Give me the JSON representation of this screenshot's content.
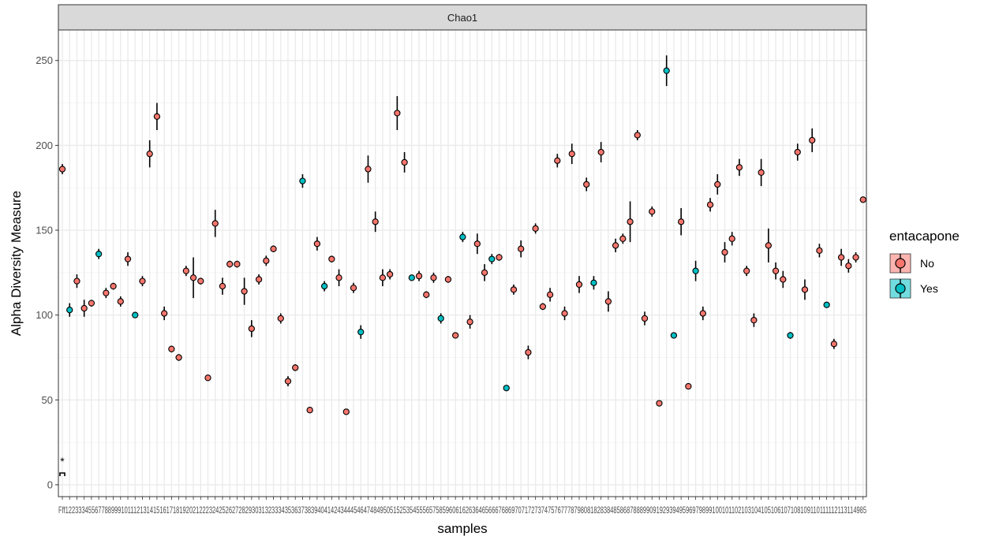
{
  "chart_data": {
    "type": "scatter",
    "facet_strip": "Chao1",
    "xlabel": "samples",
    "ylabel": "Alpha Diversity Measure",
    "ylim": [
      -7,
      268
    ],
    "yticks": [
      0,
      50,
      100,
      150,
      200,
      250
    ],
    "grid": true,
    "legend": {
      "title": "entacapone",
      "placement": "right",
      "entries": [
        {
          "label": "No",
          "color": "#F8766D"
        },
        {
          "label": "Yes",
          "color": "#00BFC4"
        }
      ]
    },
    "x_tick_text": "Fff12233345567788999101112131415161718192021222324252627282930313233343536373839404142434445464748495051525354555657585960616263646566676869707172737475767778798081828384858687888990919293949596979899100101102103104105106107108109110111112113114985",
    "annotation": "*",
    "points": [
      {
        "group": "No",
        "y": 186,
        "err": 3
      },
      {
        "group": "Yes",
        "y": 103,
        "err": 4
      },
      {
        "group": "No",
        "y": 120,
        "err": 4
      },
      {
        "group": "No",
        "y": 104,
        "err": 5
      },
      {
        "group": "No",
        "y": 107,
        "err": 2
      },
      {
        "group": "Yes",
        "y": 136,
        "err": 3
      },
      {
        "group": "No",
        "y": 113,
        "err": 3
      },
      {
        "group": "No",
        "y": 117,
        "err": 2
      },
      {
        "group": "No",
        "y": 108,
        "err": 3
      },
      {
        "group": "No",
        "y": 133,
        "err": 4
      },
      {
        "group": "Yes",
        "y": 100,
        "err": 1
      },
      {
        "group": "No",
        "y": 120,
        "err": 3
      },
      {
        "group": "No",
        "y": 195,
        "err": 8
      },
      {
        "group": "No",
        "y": 217,
        "err": 8
      },
      {
        "group": "No",
        "y": 101,
        "err": 4
      },
      {
        "group": "No",
        "y": 80,
        "err": 2
      },
      {
        "group": "No",
        "y": 75,
        "err": 2
      },
      {
        "group": "No",
        "y": 126,
        "err": 3
      },
      {
        "group": "No",
        "y": 122,
        "err": 12
      },
      {
        "group": "No",
        "y": 120,
        "err": 2
      },
      {
        "group": "No",
        "y": 63,
        "err": 1
      },
      {
        "group": "No",
        "y": 154,
        "err": 8
      },
      {
        "group": "No",
        "y": 117,
        "err": 5
      },
      {
        "group": "No",
        "y": 130,
        "err": 2
      },
      {
        "group": "No",
        "y": 130,
        "err": 2
      },
      {
        "group": "No",
        "y": 114,
        "err": 8
      },
      {
        "group": "No",
        "y": 92,
        "err": 5
      },
      {
        "group": "No",
        "y": 121,
        "err": 3
      },
      {
        "group": "No",
        "y": 132,
        "err": 3
      },
      {
        "group": "No",
        "y": 139,
        "err": 2
      },
      {
        "group": "No",
        "y": 98,
        "err": 3
      },
      {
        "group": "No",
        "y": 61,
        "err": 3
      },
      {
        "group": "No",
        "y": 69,
        "err": 2
      },
      {
        "group": "Yes",
        "y": 179,
        "err": 4
      },
      {
        "group": "No",
        "y": 44,
        "err": 1
      },
      {
        "group": "No",
        "y": 142,
        "err": 4
      },
      {
        "group": "Yes",
        "y": 117,
        "err": 3
      },
      {
        "group": "No",
        "y": 133,
        "err": 2
      },
      {
        "group": "No",
        "y": 122,
        "err": 5
      },
      {
        "group": "No",
        "y": 43,
        "err": 1
      },
      {
        "group": "No",
        "y": 116,
        "err": 3
      },
      {
        "group": "Yes",
        "y": 90,
        "err": 4
      },
      {
        "group": "No",
        "y": 186,
        "err": 8
      },
      {
        "group": "No",
        "y": 155,
        "err": 6
      },
      {
        "group": "No",
        "y": 122,
        "err": 5
      },
      {
        "group": "No",
        "y": 124,
        "err": 3
      },
      {
        "group": "No",
        "y": 219,
        "err": 10
      },
      {
        "group": "No",
        "y": 190,
        "err": 6
      },
      {
        "group": "Yes",
        "y": 122,
        "err": 1
      },
      {
        "group": "No",
        "y": 123,
        "err": 3
      },
      {
        "group": "No",
        "y": 112,
        "err": 2
      },
      {
        "group": "No",
        "y": 122,
        "err": 3
      },
      {
        "group": "Yes",
        "y": 98,
        "err": 3
      },
      {
        "group": "No",
        "y": 121,
        "err": 2
      },
      {
        "group": "No",
        "y": 88,
        "err": 1
      },
      {
        "group": "Yes",
        "y": 146,
        "err": 3
      },
      {
        "group": "No",
        "y": 96,
        "err": 4
      },
      {
        "group": "No",
        "y": 142,
        "err": 6
      },
      {
        "group": "No",
        "y": 125,
        "err": 5
      },
      {
        "group": "Yes",
        "y": 133,
        "err": 3
      },
      {
        "group": "No",
        "y": 134,
        "err": 2
      },
      {
        "group": "Yes",
        "y": 57,
        "err": 1
      },
      {
        "group": "No",
        "y": 115,
        "err": 3
      },
      {
        "group": "No",
        "y": 139,
        "err": 5
      },
      {
        "group": "No",
        "y": 78,
        "err": 4
      },
      {
        "group": "No",
        "y": 151,
        "err": 3
      },
      {
        "group": "No",
        "y": 105,
        "err": 2
      },
      {
        "group": "No",
        "y": 112,
        "err": 4
      },
      {
        "group": "No",
        "y": 191,
        "err": 4
      },
      {
        "group": "No",
        "y": 101,
        "err": 4
      },
      {
        "group": "No",
        "y": 195,
        "err": 6
      },
      {
        "group": "No",
        "y": 118,
        "err": 5
      },
      {
        "group": "No",
        "y": 177,
        "err": 4
      },
      {
        "group": "Yes",
        "y": 119,
        "err": 4
      },
      {
        "group": "No",
        "y": 196,
        "err": 6
      },
      {
        "group": "No",
        "y": 108,
        "err": 6
      },
      {
        "group": "No",
        "y": 141,
        "err": 4
      },
      {
        "group": "No",
        "y": 145,
        "err": 3
      },
      {
        "group": "No",
        "y": 155,
        "err": 12
      },
      {
        "group": "No",
        "y": 206,
        "err": 3
      },
      {
        "group": "No",
        "y": 98,
        "err": 4
      },
      {
        "group": "No",
        "y": 161,
        "err": 3
      },
      {
        "group": "No",
        "y": 48,
        "err": 1
      },
      {
        "group": "Yes",
        "y": 244,
        "err": 9
      },
      {
        "group": "Yes",
        "y": 88,
        "err": 1
      },
      {
        "group": "No",
        "y": 155,
        "err": 8
      },
      {
        "group": "No",
        "y": 58,
        "err": 1
      },
      {
        "group": "Yes",
        "y": 126,
        "err": 6
      },
      {
        "group": "No",
        "y": 101,
        "err": 4
      },
      {
        "group": "No",
        "y": 165,
        "err": 4
      },
      {
        "group": "No",
        "y": 177,
        "err": 6
      },
      {
        "group": "No",
        "y": 137,
        "err": 6
      },
      {
        "group": "No",
        "y": 145,
        "err": 4
      },
      {
        "group": "No",
        "y": 187,
        "err": 5
      },
      {
        "group": "No",
        "y": 126,
        "err": 3
      },
      {
        "group": "No",
        "y": 97,
        "err": 4
      },
      {
        "group": "No",
        "y": 184,
        "err": 8
      },
      {
        "group": "No",
        "y": 141,
        "err": 10
      },
      {
        "group": "No",
        "y": 126,
        "err": 5
      },
      {
        "group": "No",
        "y": 121,
        "err": 5
      },
      {
        "group": "Yes",
        "y": 88,
        "err": 2
      },
      {
        "group": "No",
        "y": 196,
        "err": 5
      },
      {
        "group": "No",
        "y": 115,
        "err": 6
      },
      {
        "group": "No",
        "y": 203,
        "err": 7
      },
      {
        "group": "No",
        "y": 138,
        "err": 4
      },
      {
        "group": "Yes",
        "y": 106,
        "err": 1
      },
      {
        "group": "No",
        "y": 83,
        "err": 3
      },
      {
        "group": "No",
        "y": 134,
        "err": 5
      },
      {
        "group": "No",
        "y": 129,
        "err": 4
      },
      {
        "group": "No",
        "y": 134,
        "err": 3
      },
      {
        "group": "No",
        "y": 168,
        "err": 1
      }
    ]
  }
}
